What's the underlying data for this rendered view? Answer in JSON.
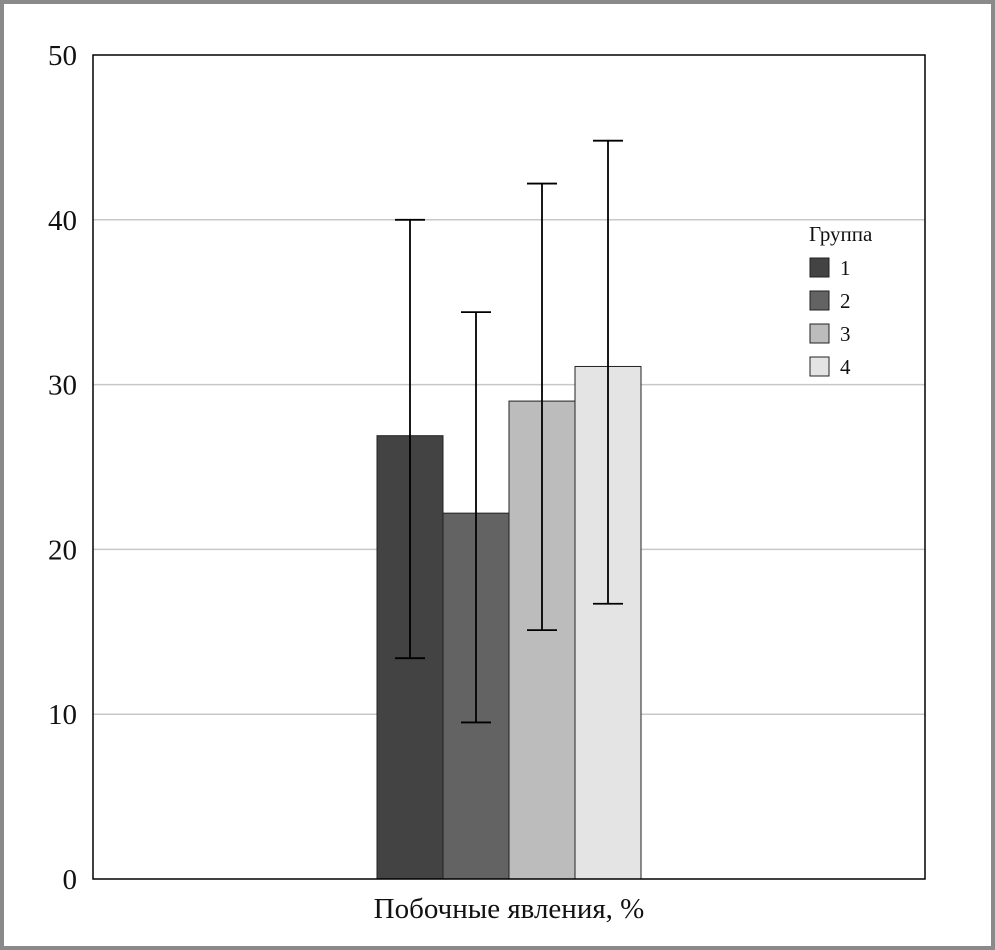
{
  "chart_data": {
    "type": "bar",
    "title": "",
    "xlabel": "Побочные явления, %",
    "ylabel": "",
    "ylim": [
      0,
      50
    ],
    "yticks": [
      0,
      10,
      20,
      30,
      40,
      50
    ],
    "grid": true,
    "categories": [
      "Побочные явления, %"
    ],
    "legend": {
      "title": "Группа",
      "position": "right"
    },
    "series": [
      {
        "name": "1",
        "values": [
          26.9
        ],
        "error_low": [
          13.4
        ],
        "error_high": [
          40.0
        ],
        "color": "#434343"
      },
      {
        "name": "2",
        "values": [
          22.2
        ],
        "error_low": [
          9.5
        ],
        "error_high": [
          34.4
        ],
        "color": "#636363"
      },
      {
        "name": "3",
        "values": [
          29.0
        ],
        "error_low": [
          15.1
        ],
        "error_high": [
          42.2
        ],
        "color": "#bcbcbc"
      },
      {
        "name": "4",
        "values": [
          31.1
        ],
        "error_low": [
          16.7
        ],
        "error_high": [
          44.8
        ],
        "color": "#e4e4e4"
      }
    ],
    "colors": {
      "grid": "#c8c8c8",
      "axis": "#000000",
      "frame": "#8a8a8a"
    }
  }
}
